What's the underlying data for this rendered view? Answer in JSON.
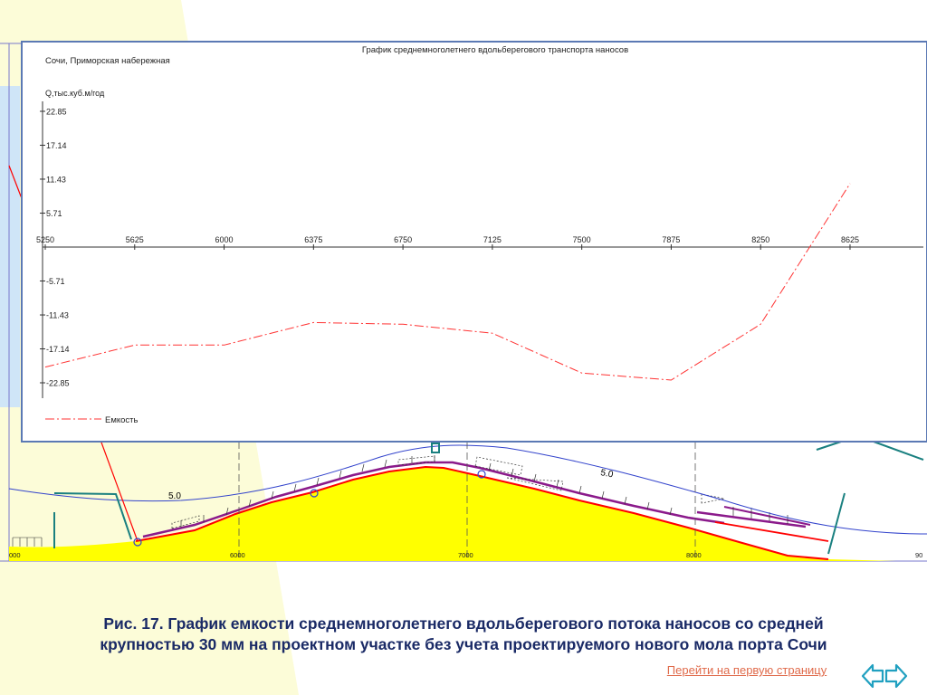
{
  "chart_data": {
    "type": "line",
    "title": "График среднемноголетнего вдольберегового транспорта наносов",
    "subtitle": "Сочи, Приморская набережная",
    "ylabel": "Q,тыс.куб.м/год",
    "xlim": [
      5250,
      8925
    ],
    "ylim": [
      -22.85,
      22.85
    ],
    "x_ticks": [
      5250,
      5625,
      6000,
      6375,
      6750,
      7125,
      7500,
      7875,
      8250,
      8625
    ],
    "y_ticks": [
      22.85,
      17.14,
      11.43,
      5.71,
      -5.71,
      -11.43,
      -17.14,
      -22.85
    ],
    "y_tick_labels": [
      "22.85",
      "17.14",
      "11.43",
      "5.71",
      "-5.71",
      "-11.43",
      "-17.14",
      "-22.85"
    ],
    "legend_position": "bottom-left",
    "series": [
      {
        "name": "Емкость",
        "color": "#ff3333",
        "style": "dash-dot",
        "x": [
          5250,
          5625,
          6000,
          6375,
          6750,
          7125,
          7500,
          7875,
          8250,
          8625
        ],
        "y": [
          -20.2,
          -16.5,
          -16.5,
          -12.7,
          -13.0,
          -14.5,
          -21.2,
          -22.4,
          -13.0,
          10.7
        ]
      }
    ]
  },
  "map": {
    "depth_label_left": "5.0",
    "depth_label_right": "5.0",
    "x_labels": [
      "000",
      "6000",
      "7000",
      "8000",
      "90"
    ]
  },
  "caption": {
    "line1": "Рис. 17. График емкости среднемноголетнего вдольберегового потока наносов со средней",
    "line2": "крупностью 30 мм на проектном участке без учета проектируемого нового мола порта Сочи"
  },
  "nav": {
    "first_page_link": "Перейти на первую страницу"
  },
  "colors": {
    "panel_border": "#5b79b4",
    "beach_fill": "#ffff00",
    "shore_line": "#ff0000",
    "profile_line": "#8b1a8b",
    "depth_contour": "#3344cc",
    "groin": "#1a8080",
    "caption": "#1a2a66",
    "link": "#e06a4a",
    "arrows": "#20a0c0"
  }
}
